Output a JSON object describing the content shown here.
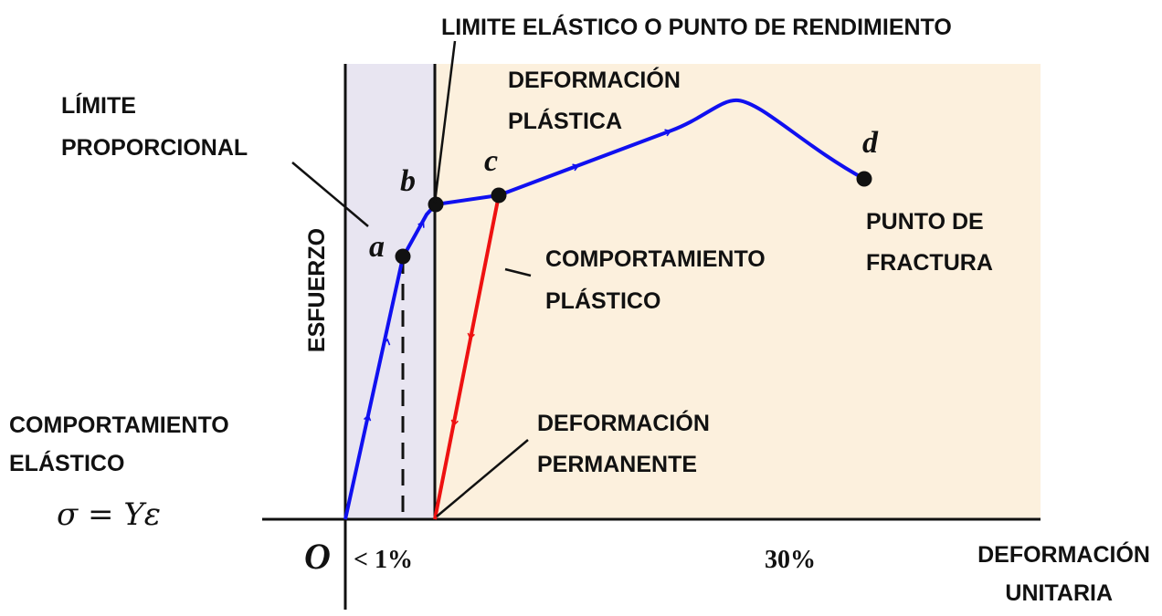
{
  "colors": {
    "elastic_region": "#e8e5f1",
    "plastic_region": "#fcf0dd",
    "elastic_curve": "#1010f0",
    "unload_line": "#ee1111",
    "ink": "#111111"
  },
  "axes": {
    "origin_label": "O",
    "x_label_line1": "DEFORMACIÓN",
    "x_label_line2": "UNITARIA",
    "y_label": "ESFUERZO",
    "tick_small": "< 1%",
    "tick_large": "30%"
  },
  "labels": {
    "yield_point": "LIMITE ELÁSTICO O PUNTO DE RENDIMIENTO",
    "proportional_line1": "LÍMITE",
    "proportional_line2": "PROPORCIONAL",
    "plastic_deformation_line1": "DEFORMACIÓN",
    "plastic_deformation_line2": "PLÁSTICA",
    "plastic_behavior_line1": "COMPORTAMIENTO",
    "plastic_behavior_line2": "PLÁSTICO",
    "fracture_line1": "PUNTO DE",
    "fracture_line2": "FRACTURA",
    "permanent_line1": "DEFORMACIÓN",
    "permanent_line2": "PERMANENTE",
    "elastic_behavior_line1": "COMPORTAMIENTO",
    "elastic_behavior_line2": "ELÁSTICO",
    "formula": "σ = Yε"
  },
  "points": {
    "a": "a",
    "b": "b",
    "c": "c",
    "d": "d"
  }
}
